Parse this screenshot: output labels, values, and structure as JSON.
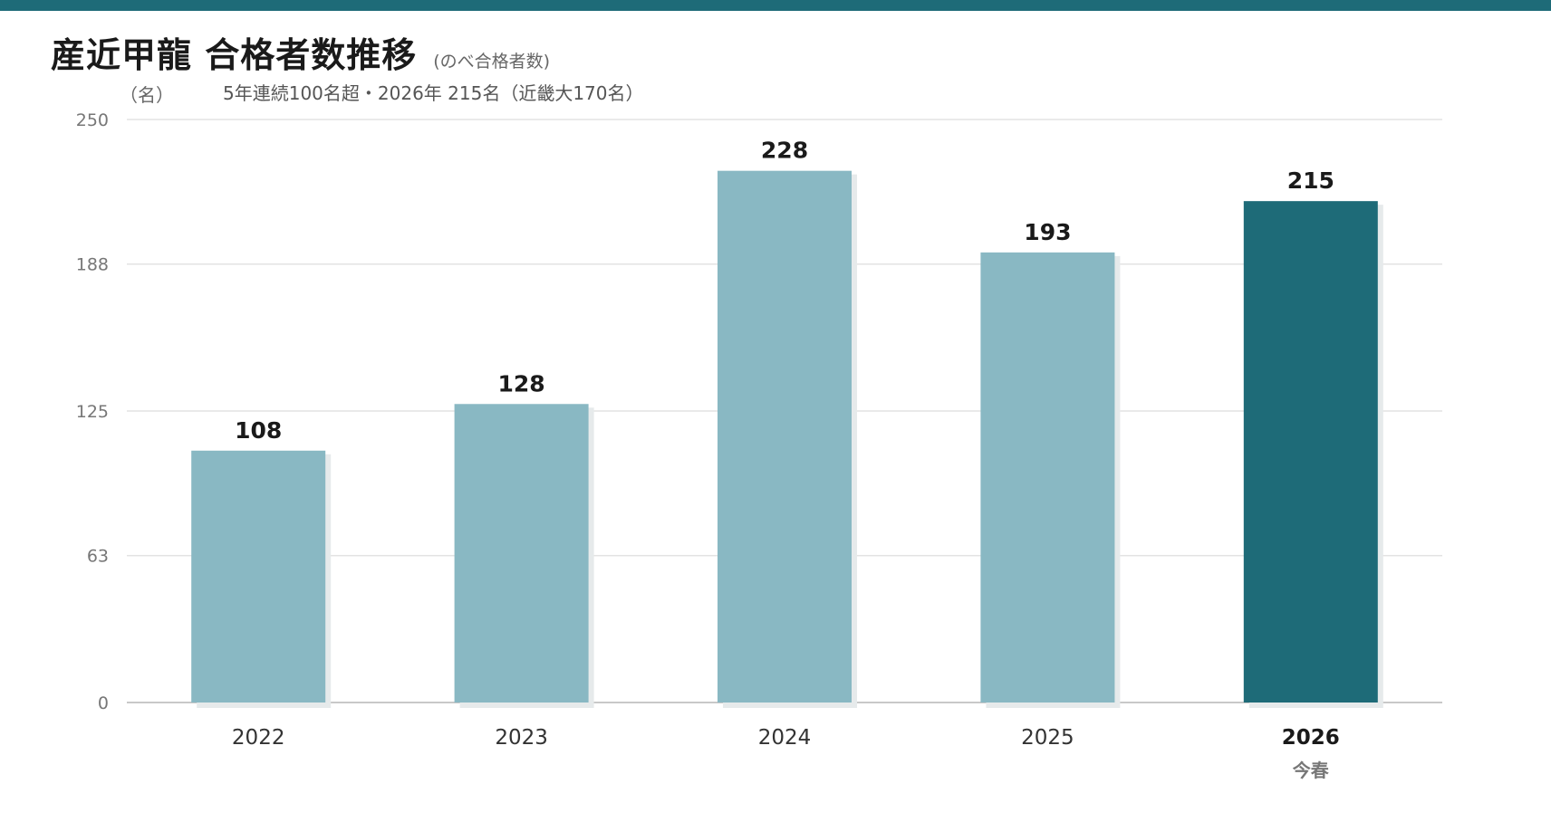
{
  "header": {
    "title": "産近甲龍 合格者数推移",
    "title_note": "(のべ合格者数)",
    "unit": "（名）",
    "subtitle": "5年連続100名超・2026年 215名（近畿大170名）"
  },
  "colors": {
    "accent": "#1e6b78",
    "bar": "#89b8c3",
    "shadow": "#e6eaeb",
    "grid": "#e3e3e3",
    "axis": "#b5b5b5"
  },
  "chart_data": {
    "type": "bar",
    "categories": [
      "2022",
      "2023",
      "2024",
      "2025",
      "2026"
    ],
    "values": [
      108,
      128,
      228,
      193,
      215
    ],
    "highlight_index": 4,
    "highlight_note": "今春",
    "yticks": [
      0,
      63,
      125,
      188,
      250
    ],
    "ylim": [
      0,
      250
    ],
    "ylabel": "（名）",
    "xlabel": "",
    "grid": true,
    "legend": "none"
  }
}
